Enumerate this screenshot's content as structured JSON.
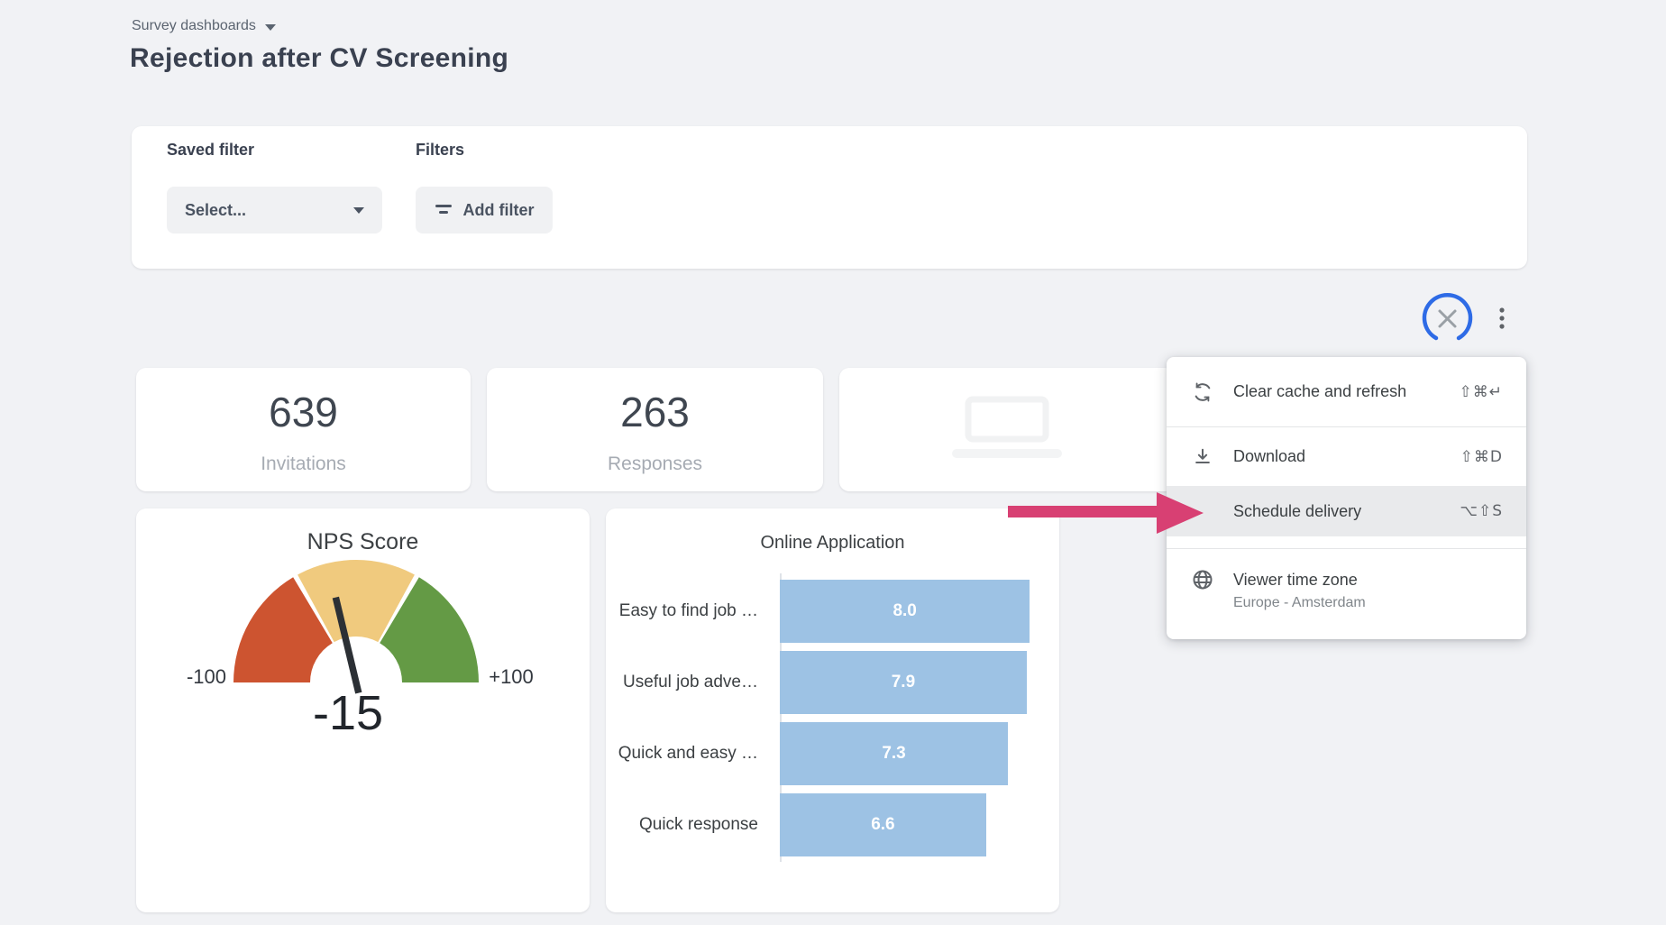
{
  "breadcrumb": {
    "label": "Survey dashboards"
  },
  "title": "Rejection after CV Screening",
  "filter_bar": {
    "saved_filter_label": "Saved filter",
    "saved_filter_value": "Select...",
    "filters_label": "Filters",
    "add_filter_label": "Add filter"
  },
  "kpis": [
    {
      "value": "639",
      "label": "Invitations"
    },
    {
      "value": "263",
      "label": "Responses"
    },
    {
      "value": "",
      "label": "",
      "empty_state": "laptop-illustration"
    }
  ],
  "menu": {
    "items": [
      {
        "icon": "refresh-icon",
        "label": "Clear cache and refresh",
        "shortcut": "⇧⌘↵"
      },
      {
        "icon": "download-icon",
        "label": "Download",
        "shortcut": "⇧⌘D"
      },
      {
        "icon": "",
        "label": "Schedule delivery",
        "shortcut": "⌥⇧S",
        "highlighted": true
      },
      {
        "icon": "globe-icon",
        "label": "Viewer time zone",
        "sublabel": "Europe - Amsterdam"
      }
    ]
  },
  "chart_data": [
    {
      "type": "gauge",
      "title": "NPS Score",
      "value": -15,
      "value_label": "-15",
      "min": -100,
      "max": 100,
      "min_label": "-100",
      "max_label": "+100",
      "segments": [
        {
          "from": -100,
          "to": -33,
          "color": "#cd5430"
        },
        {
          "from": -33,
          "to": 33,
          "color": "#f0ca7e"
        },
        {
          "from": 33,
          "to": 100,
          "color": "#649a45"
        }
      ],
      "needle_color": "#2c3035"
    },
    {
      "type": "bar",
      "title": "Online Application",
      "orientation": "horizontal",
      "categories": [
        "Easy to find job …",
        "Useful job adve…",
        "Quick and easy …",
        "Quick response"
      ],
      "values": [
        8.0,
        7.9,
        7.3,
        6.6
      ],
      "value_labels": [
        "8.0",
        "7.9",
        "7.3",
        "6.6"
      ],
      "xlim": [
        0,
        9
      ],
      "bar_color": "#9dc2e4",
      "grid": false,
      "legend": "none"
    }
  ],
  "colors": {
    "background": "#f1f2f5",
    "annotation_pink": "#d84073",
    "annotation_blue": "#2e6be6",
    "menu_highlight": "#e9eaec",
    "bar_blue": "#9dc2e4",
    "gauge_red": "#cd5430",
    "gauge_yellow": "#f0ca7e",
    "gauge_green": "#649a45"
  }
}
